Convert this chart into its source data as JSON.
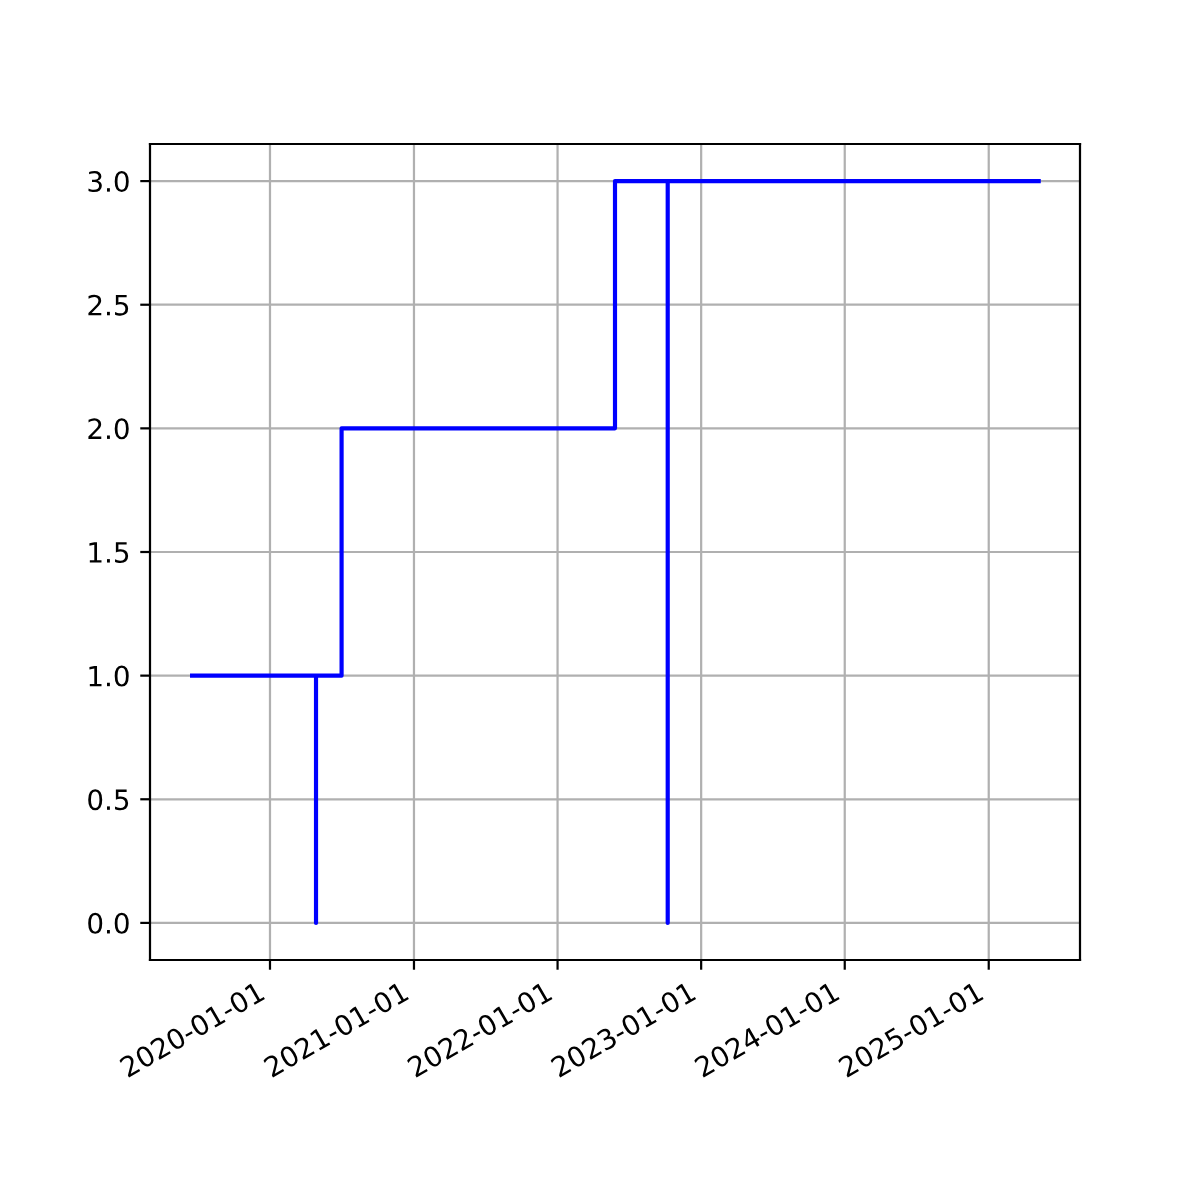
{
  "chart_data": {
    "type": "step",
    "x": [
      "2019-06-17",
      "2020-04-27",
      "2020-04-27",
      "2020-07-01",
      "2022-05-27",
      "2022-10-08",
      "2022-10-08",
      "2025-05-08"
    ],
    "series": [
      {
        "color": "#0000ff",
        "values": [
          1,
          0,
          1,
          2,
          3,
          0,
          3,
          3
        ]
      }
    ],
    "xlim": [
      "2019-03-02",
      "2025-08-21"
    ],
    "xticks": [
      "2020-01-01",
      "2021-01-01",
      "2022-01-01",
      "2023-01-01",
      "2024-01-01",
      "2025-01-01"
    ],
    "ylim": [
      -0.15,
      3.15
    ],
    "yticks": [
      {
        "value": 0,
        "label": "0.0"
      },
      {
        "value": 0.5,
        "label": "0.5"
      },
      {
        "value": 1,
        "label": "1.0"
      },
      {
        "value": 1.5,
        "label": "1.5"
      },
      {
        "value": 2,
        "label": "2.0"
      },
      {
        "value": 2.5,
        "label": "2.5"
      },
      {
        "value": 3,
        "label": "3.0"
      }
    ],
    "grid": true
  }
}
